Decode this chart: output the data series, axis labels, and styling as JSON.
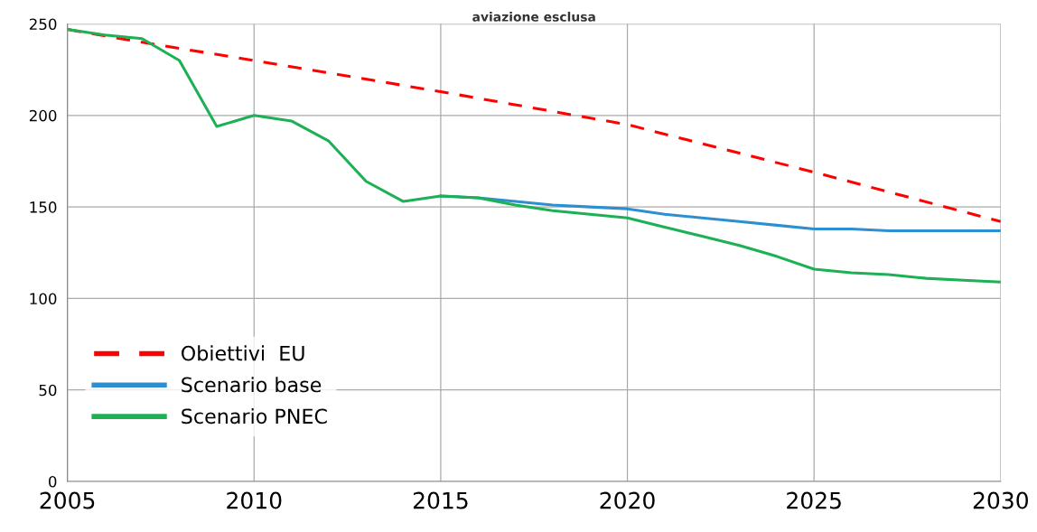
{
  "chart_data": {
    "type": "line",
    "title": "aviazione esclusa",
    "x": [
      2005,
      2006,
      2007,
      2008,
      2009,
      2010,
      2011,
      2012,
      2013,
      2014,
      2015,
      2016,
      2017,
      2018,
      2019,
      2020,
      2021,
      2022,
      2023,
      2024,
      2025,
      2026,
      2027,
      2028,
      2029,
      2030
    ],
    "series": [
      {
        "name": "Obiettivi  EU",
        "color": "#ff0000",
        "line_style": "dashed",
        "x": [
          2005,
          2007,
          2010,
          2015,
          2020,
          2025,
          2030
        ],
        "values": [
          247,
          240,
          230,
          213,
          195,
          169,
          142
        ]
      },
      {
        "name": "Scenario base",
        "color": "#2e8fd0",
        "values": [
          null,
          null,
          null,
          null,
          null,
          null,
          null,
          null,
          null,
          null,
          156,
          155,
          153,
          151,
          150,
          149,
          146,
          144,
          142,
          140,
          138,
          138,
          137,
          137,
          137,
          137
        ]
      },
      {
        "name": "Scenario PNEC",
        "color": "#1db054",
        "values": [
          247,
          244,
          242,
          230,
          194,
          200,
          197,
          186,
          164,
          153,
          156,
          155,
          151,
          148,
          146,
          144,
          139,
          134,
          129,
          123,
          116,
          114,
          113,
          111,
          110,
          109
        ]
      }
    ],
    "xlim": [
      2005,
      2030
    ],
    "xticks": [
      2005,
      2010,
      2015,
      2020,
      2025,
      2030
    ],
    "ylim": [
      0,
      250
    ],
    "yticks": [
      0,
      50,
      100,
      150,
      200,
      250
    ],
    "grid": true,
    "legend": "bottom left",
    "line_style": "solid"
  }
}
